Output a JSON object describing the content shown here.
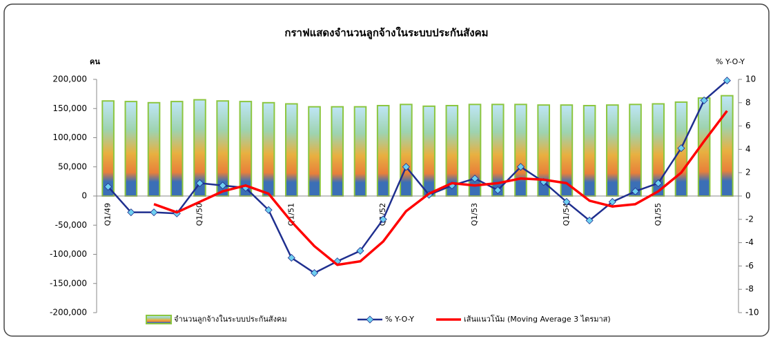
{
  "chart_data": {
    "type": "bar_line",
    "title": "กราฟแสดงจำนวนลูกจ้างในระบบประกันสังคม",
    "ylabel": "คน",
    "y2label": "% Y-O-Y",
    "categories": [
      "Q1/49",
      null,
      null,
      null,
      "Q1/50",
      null,
      null,
      null,
      "Q1/51",
      null,
      null,
      null,
      "Q1/52",
      null,
      null,
      null,
      "Q1/53",
      null,
      null,
      null,
      "Q1/54",
      null,
      null,
      null,
      "Q1/55",
      null,
      null,
      null
    ],
    "series": [
      {
        "name": "จำนวนลูกจ้างในระบบประกันสังคม",
        "type": "bar",
        "color": "#8cc63f",
        "values": [
          163000,
          162000,
          160000,
          162000,
          165000,
          163000,
          162000,
          160000,
          158000,
          153000,
          153000,
          153000,
          155000,
          157000,
          154000,
          155000,
          157000,
          157000,
          157000,
          156000,
          156000,
          155000,
          156000,
          157000,
          158000,
          161000,
          168000,
          172000
        ]
      },
      {
        "name": "% Y-O-Y",
        "type": "line",
        "axis": "y2",
        "color": "#1f2f8f",
        "marker": true,
        "values": [
          0.8,
          -1.4,
          -1.4,
          -1.5,
          1.1,
          0.9,
          0.7,
          -1.2,
          -5.3,
          -6.6,
          -5.6,
          -4.7,
          -2.0,
          2.5,
          0.1,
          0.9,
          1.5,
          0.5,
          2.5,
          1.2,
          -0.5,
          -2.1,
          -0.5,
          0.4,
          1.1,
          4.1,
          8.2,
          9.9
        ]
      },
      {
        "name": "เส้นแนวโน้ม (Moving Average 3 ไตรมาส)",
        "type": "line",
        "axis": "y2",
        "color": "#ff0000",
        "marker": false,
        "values": [
          null,
          null,
          -0.7,
          -1.4,
          -0.5,
          0.4,
          0.9,
          0.2,
          -2.2,
          -4.3,
          -5.9,
          -5.6,
          -3.9,
          -1.3,
          0.2,
          1.1,
          0.9,
          1.1,
          1.5,
          1.4,
          1.1,
          -0.4,
          -0.9,
          -0.7,
          0.4,
          2.0,
          4.7,
          7.3
        ]
      }
    ],
    "ylim": [
      -200000,
      200000
    ],
    "yticks": [
      {
        "value": -200000,
        "label": "-200,000"
      },
      {
        "value": -150000,
        "label": "-150,000"
      },
      {
        "value": -100000,
        "label": "-100,000"
      },
      {
        "value": -50000,
        "label": "-50,000"
      },
      0,
      {
        "value": 50000,
        "label": "50,000"
      },
      {
        "value": 100000,
        "label": "100,000"
      },
      {
        "value": 150000,
        "label": "150,000"
      },
      {
        "value": 200000,
        "label": "200,000"
      }
    ],
    "y2lim": [
      -10,
      10
    ],
    "y2ticks": [
      -10,
      -8,
      -6,
      -4,
      -2,
      0,
      2,
      4,
      6,
      8,
      10
    ]
  }
}
